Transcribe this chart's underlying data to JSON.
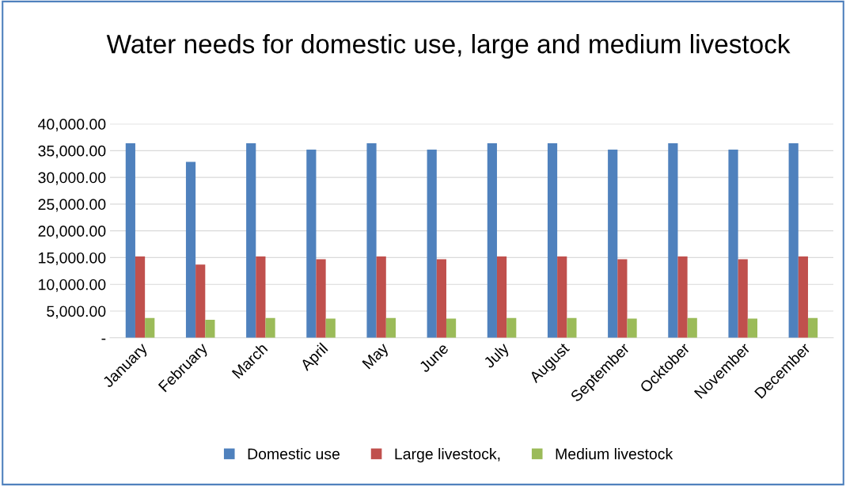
{
  "chart_data": {
    "type": "bar",
    "title": "Water needs for domestic use, large and medium livestock",
    "categories": [
      "January",
      "February",
      "March",
      "April",
      "May",
      "June",
      "July",
      "August",
      "September",
      "Ocktober",
      "November",
      "December"
    ],
    "series": [
      {
        "name": "Domestic use",
        "color": "#4f81bd",
        "values": [
          36400,
          32900,
          36400,
          35200,
          36400,
          35200,
          36400,
          36400,
          35200,
          36400,
          35200,
          36400
        ]
      },
      {
        "name": "Large livestock,",
        "color": "#c0504d",
        "values": [
          15200,
          13700,
          15200,
          14700,
          15200,
          14700,
          15200,
          15200,
          14700,
          15200,
          14700,
          15200
        ]
      },
      {
        "name": "Medium livestock",
        "color": "#9bbb59",
        "values": [
          3700,
          3350,
          3700,
          3600,
          3700,
          3600,
          3700,
          3700,
          3600,
          3700,
          3600,
          3700
        ]
      }
    ],
    "ylim": [
      0,
      40000
    ],
    "yticks": [
      {
        "value": 0,
        "label": "-"
      },
      {
        "value": 5000,
        "label": "5,000.00"
      },
      {
        "value": 10000,
        "label": "10,000.00"
      },
      {
        "value": 15000,
        "label": "15,000.00"
      },
      {
        "value": 20000,
        "label": "20,000.00"
      },
      {
        "value": 25000,
        "label": "25,000.00"
      },
      {
        "value": 30000,
        "label": "30,000.00"
      },
      {
        "value": 35000,
        "label": "35,000.00"
      },
      {
        "value": 40000,
        "label": "40,000.00"
      }
    ],
    "grid": "y",
    "legend": "bottom"
  }
}
